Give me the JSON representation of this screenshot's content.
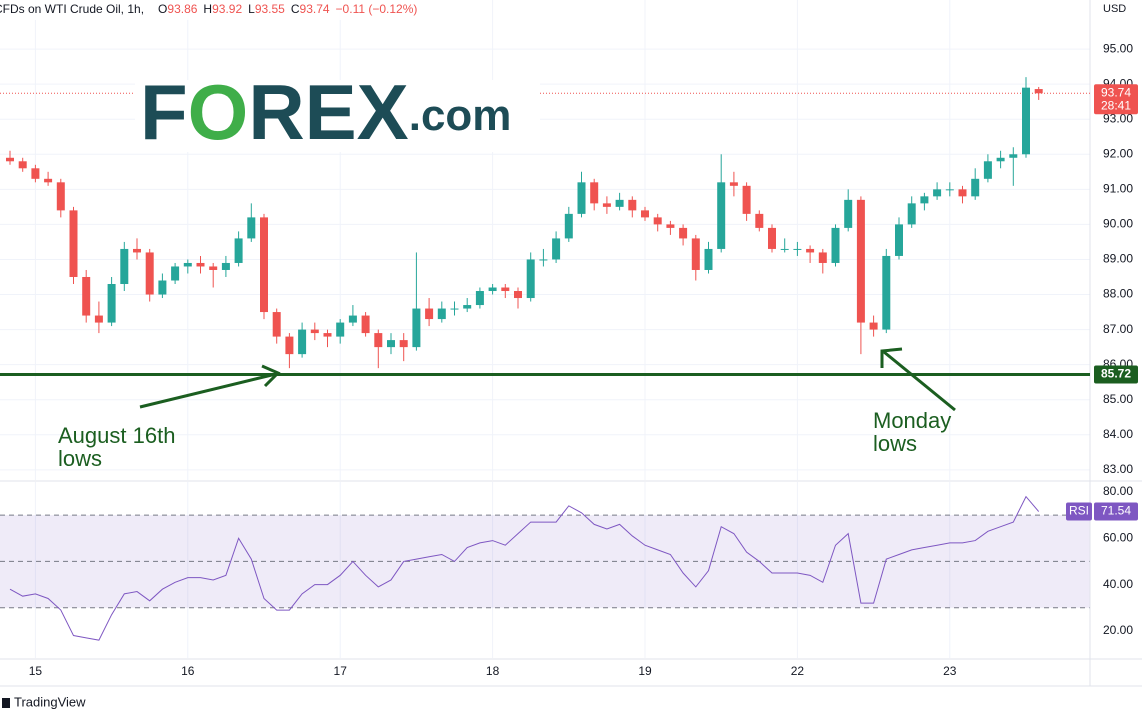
{
  "chart_data": {
    "type": "candlestick",
    "header": {
      "symbol": "CFDs on WTI Crude Oil, 1h,",
      "ohlc": [
        {
          "label": "O",
          "value": 93.86
        },
        {
          "label": "H",
          "value": 93.92
        },
        {
          "label": "L",
          "value": 93.55
        },
        {
          "label": "C",
          "value": 93.74
        }
      ],
      "change": "−0.11 (−0.12%)"
    },
    "currency": "USD",
    "logo": [
      "F",
      "O",
      "REX",
      ".com"
    ],
    "footer": "TradingView",
    "x": [
      null,
      null,
      "15",
      null,
      null,
      null,
      null,
      null,
      null,
      null,
      null,
      null,
      null,
      null,
      "16",
      null,
      null,
      null,
      null,
      null,
      null,
      null,
      null,
      null,
      null,
      null,
      "17",
      null,
      null,
      null,
      null,
      null,
      null,
      null,
      null,
      null,
      null,
      null,
      "18",
      null,
      null,
      null,
      null,
      null,
      null,
      null,
      null,
      null,
      null,
      null,
      "19",
      null,
      null,
      null,
      null,
      null,
      null,
      null,
      null,
      null,
      null,
      null,
      "22",
      null,
      null,
      null,
      null,
      null,
      null,
      null,
      null,
      null,
      null,
      null,
      "23",
      null,
      null,
      null,
      null,
      null,
      null,
      null
    ],
    "open": [
      91.9,
      91.8,
      91.6,
      91.3,
      91.2,
      90.4,
      88.5,
      87.4,
      87.2,
      88.3,
      89.3,
      89.2,
      88.0,
      88.4,
      88.8,
      88.9,
      88.8,
      88.7,
      88.9,
      89.6,
      90.2,
      87.5,
      86.8,
      86.3,
      87.0,
      86.9,
      86.8,
      87.2,
      87.4,
      86.9,
      86.5,
      86.7,
      86.5,
      87.6,
      87.3,
      87.6,
      87.6,
      87.7,
      88.1,
      88.2,
      88.1,
      87.9,
      89.0,
      89.0,
      89.6,
      90.3,
      91.2,
      90.6,
      90.5,
      90.7,
      90.4,
      90.2,
      90.0,
      89.9,
      89.6,
      88.7,
      89.3,
      91.2,
      91.1,
      90.3,
      89.9,
      89.3,
      89.3,
      89.3,
      89.2,
      88.9,
      89.9,
      90.7,
      87.2,
      87.0,
      89.1,
      90.0,
      90.6,
      90.8,
      91.0,
      91.0,
      90.8,
      91.3,
      91.8,
      91.9,
      92.0,
      93.86
    ],
    "high": [
      92.1,
      91.9,
      91.7,
      91.5,
      91.3,
      90.5,
      88.7,
      87.8,
      88.5,
      89.5,
      89.6,
      89.3,
      88.6,
      88.9,
      89.0,
      89.1,
      88.9,
      89.1,
      89.8,
      90.6,
      90.3,
      87.6,
      86.9,
      87.2,
      87.2,
      87.0,
      87.3,
      87.7,
      87.5,
      87.0,
      86.9,
      86.9,
      89.2,
      87.9,
      87.8,
      87.8,
      87.9,
      88.2,
      88.3,
      88.3,
      88.2,
      89.2,
      89.3,
      89.8,
      90.5,
      91.5,
      91.3,
      90.8,
      90.9,
      90.8,
      90.5,
      90.3,
      90.1,
      90.0,
      89.7,
      89.5,
      92.0,
      91.5,
      91.2,
      90.4,
      90.0,
      89.6,
      89.5,
      89.4,
      89.3,
      90.0,
      91.0,
      90.8,
      87.4,
      89.3,
      90.2,
      90.8,
      90.9,
      91.2,
      91.2,
      91.1,
      91.6,
      92.0,
      92.1,
      92.2,
      94.2,
      93.92
    ],
    "low": [
      91.7,
      91.5,
      91.2,
      91.1,
      90.2,
      88.3,
      87.2,
      86.9,
      87.1,
      88.1,
      89.0,
      87.8,
      87.9,
      88.3,
      88.6,
      88.6,
      88.2,
      88.5,
      88.8,
      89.5,
      87.3,
      86.6,
      85.9,
      86.2,
      86.7,
      86.5,
      86.6,
      87.1,
      86.8,
      85.9,
      86.3,
      86.1,
      86.4,
      87.1,
      87.2,
      87.4,
      87.5,
      87.6,
      88.0,
      87.9,
      87.6,
      87.8,
      88.8,
      88.9,
      89.5,
      90.2,
      90.4,
      90.3,
      90.4,
      90.2,
      90.1,
      89.8,
      89.7,
      89.4,
      88.4,
      88.6,
      89.2,
      90.8,
      90.1,
      89.8,
      89.2,
      89.2,
      89.1,
      88.9,
      88.6,
      88.8,
      89.8,
      86.3,
      86.8,
      86.9,
      89.0,
      89.9,
      90.4,
      90.7,
      90.8,
      90.6,
      90.7,
      91.2,
      91.6,
      91.1,
      91.9,
      93.55
    ],
    "close": [
      91.8,
      91.6,
      91.3,
      91.2,
      90.4,
      88.5,
      87.4,
      87.2,
      88.3,
      89.3,
      89.2,
      88.0,
      88.4,
      88.8,
      88.9,
      88.8,
      88.7,
      88.9,
      89.6,
      90.2,
      87.5,
      86.8,
      86.3,
      87.0,
      86.9,
      86.8,
      87.2,
      87.4,
      86.9,
      86.5,
      86.7,
      86.5,
      87.6,
      87.3,
      87.6,
      87.6,
      87.7,
      88.1,
      88.2,
      88.1,
      87.9,
      89.0,
      89.0,
      89.6,
      90.3,
      91.2,
      90.6,
      90.5,
      90.7,
      90.4,
      90.2,
      90.0,
      89.9,
      89.6,
      88.7,
      89.3,
      91.2,
      91.1,
      90.3,
      89.9,
      89.3,
      89.3,
      89.3,
      89.2,
      88.9,
      89.9,
      90.7,
      87.2,
      87.0,
      89.1,
      90.0,
      90.6,
      90.8,
      91.0,
      91.0,
      90.8,
      91.3,
      91.8,
      91.9,
      92.0,
      93.9,
      93.74
    ],
    "up_color": "#26a69a",
    "down_color": "#ef5350",
    "countdown": "28:41",
    "ylim": [
      82.71,
      96.4
    ],
    "yticks": [
      {
        "value": 83,
        "label": "83.00"
      },
      {
        "value": 84,
        "label": "84.00"
      },
      {
        "value": 85,
        "label": "85.00"
      },
      {
        "value": 86,
        "label": "86.00"
      },
      {
        "value": 87,
        "label": "87.00"
      },
      {
        "value": 88,
        "label": "88.00"
      },
      {
        "value": 89,
        "label": "89.00"
      },
      {
        "value": 90,
        "label": "90.00"
      },
      {
        "value": 91,
        "label": "91.00"
      },
      {
        "value": 92,
        "label": "92.00"
      },
      {
        "value": 93,
        "label": "93.00"
      },
      {
        "value": 94,
        "label": "94.00"
      },
      {
        "value": 95,
        "label": "95.00"
      }
    ],
    "grid": true,
    "support": {
      "value": 85.72,
      "color": "#1b5e20"
    },
    "annotations": [
      {
        "lines": [
          "August 16th",
          "lows"
        ]
      },
      {
        "lines": [
          "Monday",
          "lows"
        ]
      }
    ],
    "rsi": {
      "name": "RSI",
      "color": "#7e57c2",
      "values": [
        38,
        35,
        36,
        34,
        29,
        18,
        17,
        16,
        27,
        36,
        37,
        33,
        38,
        41,
        43,
        43,
        42,
        44,
        60,
        51,
        34,
        29,
        29,
        36,
        40,
        40,
        44,
        50,
        44,
        39,
        42,
        50,
        51,
        52,
        53,
        50,
        56,
        58,
        59,
        57,
        62,
        67,
        67,
        67,
        74,
        71,
        66,
        64,
        66,
        61,
        57,
        55,
        53,
        45,
        39,
        46,
        65,
        62,
        54,
        50,
        45,
        45,
        45,
        44,
        41,
        57,
        62,
        32,
        32,
        51,
        53,
        55,
        56,
        57,
        58,
        58,
        59,
        63,
        65,
        67,
        78,
        71.54
      ],
      "ylim": [
        8.3,
        84.3
      ],
      "yticks": [
        {
          "value": 20,
          "label": "20.00"
        },
        {
          "value": 40,
          "label": "40.00"
        },
        {
          "value": 60,
          "label": "60.00"
        },
        {
          "value": 80,
          "label": "80.00"
        }
      ],
      "levels": [
        30,
        50,
        70
      ]
    }
  }
}
